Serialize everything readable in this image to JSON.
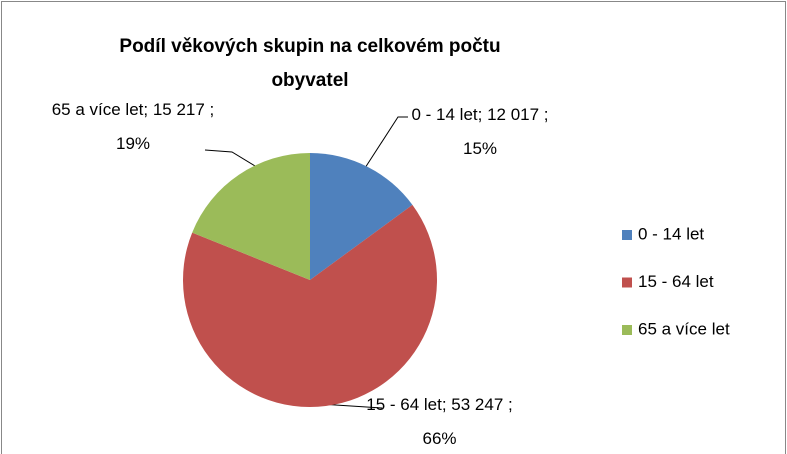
{
  "chart_data": {
    "type": "pie",
    "title": "Podíl věkových skupin na celkovém počtu obyvatel",
    "categories": [
      "0 - 14 let",
      "15 - 64 let",
      "65 a více let"
    ],
    "values": [
      12017,
      53247,
      15217
    ],
    "value_labels": [
      "0 - 14 let; 12 017 ; 15%",
      "15 - 64 let; 53 247 ; 66%",
      "65 a více let; 15 217 ; 19%"
    ],
    "colors": [
      "#4f81bd",
      "#c0504d",
      "#9bbb59"
    ],
    "legend": "right"
  }
}
